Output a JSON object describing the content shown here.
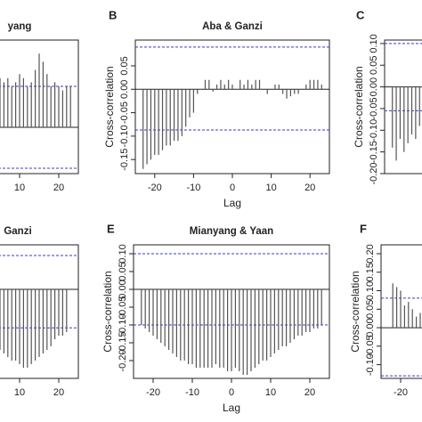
{
  "chart_data": [
    {
      "type": "bar",
      "title": "yang",
      "color": "#555555",
      "conf_color": "#3a3acc",
      "x": [
        5,
        6,
        7,
        8,
        9,
        10,
        11,
        12,
        13,
        14,
        15,
        16,
        17,
        18,
        19,
        20,
        21,
        22,
        23
      ],
      "values": [
        0.12,
        0.11,
        0.12,
        0.1,
        0.11,
        0.13,
        0.12,
        0.1,
        0.11,
        0.14,
        0.18,
        0.16,
        0.13,
        0.1,
        0.11,
        0.1,
        0.09,
        0.1,
        0.1
      ],
      "xlim": [
        -25,
        25
      ],
      "ylim": [
        -0.113,
        0.213
      ],
      "xticks": [
        10,
        20
      ],
      "conf_lines": [
        0.1,
        -0.1
      ]
    },
    {
      "type": "bar",
      "label": "B",
      "title": "Aba & Ganzi",
      "xlabel": "Lag",
      "ylabel": "Cross-correlation",
      "color": "#555555",
      "conf_color": "#3a3acc",
      "x": [
        -23,
        -22,
        -21,
        -20,
        -19,
        -18,
        -17,
        -16,
        -15,
        -14,
        -13,
        -12,
        -11,
        -10,
        -9,
        -8,
        -7,
        -6,
        -5,
        -4,
        -3,
        -2,
        -1,
        0,
        1,
        2,
        3,
        4,
        5,
        6,
        7,
        8,
        9,
        10,
        11,
        12,
        13,
        14,
        15,
        16,
        17,
        18,
        19,
        20,
        21,
        22,
        23
      ],
      "values": [
        -0.17,
        -0.16,
        -0.15,
        -0.14,
        -0.14,
        -0.13,
        -0.12,
        -0.12,
        -0.11,
        -0.11,
        -0.1,
        -0.08,
        -0.06,
        -0.05,
        -0.01,
        0.0,
        0.02,
        0.02,
        -0.005,
        0.01,
        0.02,
        0.01,
        0.02,
        0.01,
        0.0,
        0.02,
        0.01,
        0.02,
        0.01,
        0.02,
        0.02,
        0.0,
        -0.01,
        0.0,
        0.01,
        0.01,
        -0.01,
        -0.02,
        -0.015,
        -0.01,
        -0.01,
        0.0,
        0.01,
        0.02,
        0.02,
        0.02,
        0.01
      ],
      "xlim": [
        -25,
        25
      ],
      "ylim": [
        -0.18,
        0.105
      ],
      "xticks": [
        -20,
        -10,
        0,
        10,
        20
      ],
      "yticks": [
        {
          "value": 0.05,
          "label": "0.05"
        },
        {
          "value": 0,
          "label": "0.00"
        },
        {
          "value": -0.05,
          "label": "-0.05"
        },
        {
          "value": -0.1,
          "label": "-0.10"
        },
        {
          "value": -0.15,
          "label": "-0.15"
        }
      ],
      "conf_lines": [
        0.09,
        -0.087
      ]
    },
    {
      "type": "bar",
      "label": "C",
      "ylabel": "Cross-correlation",
      "color": "#555555",
      "conf_color": "#3a3acc",
      "x": [
        -23,
        -22,
        -21,
        -20,
        -19,
        -18,
        -17,
        -16
      ],
      "values": [
        -0.14,
        -0.17,
        -0.12,
        -0.15,
        -0.13,
        -0.11,
        -0.12,
        -0.09
      ],
      "xlim": [
        -25,
        25
      ],
      "ylim": [
        -0.2,
        0.108
      ],
      "yticks": [
        {
          "value": 0.1,
          "label": "0.10"
        },
        {
          "value": 0.05,
          "label": "0.05"
        },
        {
          "value": 0,
          "label": "0.00"
        },
        {
          "value": -0.05,
          "label": "-0.05"
        },
        {
          "value": -0.1,
          "label": "-0.10"
        },
        {
          "value": -0.15,
          "label": "-0.15"
        },
        {
          "value": -0.2,
          "label": "-0.20"
        }
      ],
      "conf_lines": [
        0.1,
        -0.055
      ]
    },
    {
      "type": "bar",
      "title": "Ganzi",
      "color": "#555555",
      "conf_color": "#3a3acc",
      "x": [
        5,
        6,
        7,
        8,
        9,
        10,
        11,
        12,
        13,
        14,
        15,
        16,
        17,
        18,
        19,
        20,
        21,
        22
      ],
      "values": [
        -0.17,
        -0.18,
        -0.19,
        -0.2,
        -0.2,
        -0.21,
        -0.22,
        -0.22,
        -0.21,
        -0.2,
        -0.19,
        -0.18,
        -0.17,
        -0.16,
        -0.14,
        -0.13,
        -0.13,
        -0.12
      ],
      "xlim": [
        -25,
        25
      ],
      "ylim": [
        -0.25,
        0.125
      ],
      "xticks": [
        10,
        20
      ],
      "conf_lines": [
        0.095,
        -0.108
      ]
    },
    {
      "type": "bar",
      "label": "E",
      "title": "Mianyang & Yaan",
      "xlabel": "Lag",
      "ylabel": "Cross-correlation",
      "color": "#555555",
      "conf_color": "#3a3acc",
      "x": [
        -23,
        -22,
        -21,
        -20,
        -19,
        -18,
        -17,
        -16,
        -15,
        -14,
        -13,
        -12,
        -11,
        -10,
        -9,
        -8,
        -7,
        -6,
        -5,
        -4,
        -3,
        -2,
        -1,
        0,
        1,
        2,
        3,
        4,
        5,
        6,
        7,
        8,
        9,
        10,
        11,
        12,
        13,
        14,
        15,
        16,
        17,
        18,
        19,
        20,
        21,
        22,
        23
      ],
      "values": [
        -0.1,
        -0.11,
        -0.12,
        -0.13,
        -0.14,
        -0.15,
        -0.16,
        -0.17,
        -0.18,
        -0.19,
        -0.2,
        -0.2,
        -0.21,
        -0.21,
        -0.22,
        -0.22,
        -0.22,
        -0.22,
        -0.22,
        -0.21,
        -0.22,
        -0.22,
        -0.23,
        -0.23,
        -0.22,
        -0.23,
        -0.24,
        -0.24,
        -0.23,
        -0.22,
        -0.21,
        -0.2,
        -0.2,
        -0.19,
        -0.18,
        -0.17,
        -0.16,
        -0.16,
        -0.15,
        -0.14,
        -0.13,
        -0.13,
        -0.12,
        -0.12,
        -0.11,
        -0.11,
        -0.1
      ],
      "xlim": [
        -25,
        25
      ],
      "ylim": [
        -0.25,
        0.125
      ],
      "xticks": [
        -20,
        -10,
        0,
        10,
        20
      ],
      "yticks": [
        {
          "value": 0.1,
          "label": "0.10"
        },
        {
          "value": 0.05,
          "label": "0.05"
        },
        {
          "value": 0,
          "label": "0.00"
        },
        {
          "value": -0.05,
          "label": "-0.05"
        },
        {
          "value": -0.1,
          "label": "-0.10"
        },
        {
          "value": -0.15,
          "label": "-0.15"
        },
        {
          "value": -0.2,
          "label": "-0.20"
        }
      ],
      "conf_lines": [
        0.1,
        -0.1
      ]
    },
    {
      "type": "bar",
      "label": "F",
      "ylabel": "Cross-correlation",
      "color": "#555555",
      "conf_color": "#3a3acc",
      "x": [
        -22,
        -21,
        -20,
        -19,
        -18,
        -17,
        -16,
        -15
      ],
      "values": [
        0.12,
        0.11,
        0.1,
        0.06,
        0.07,
        0.05,
        0.03,
        0.04
      ],
      "xlim": [
        -25,
        25
      ],
      "ylim": [
        -0.137,
        0.224
      ],
      "xticks": [
        -20
      ],
      "yticks": [
        {
          "value": 0.2,
          "label": "0.20"
        },
        {
          "value": 0.15,
          "label": "0.15"
        },
        {
          "value": 0.1,
          "label": "0.10"
        },
        {
          "value": 0.05,
          "label": "0.05"
        },
        {
          "value": 0,
          "label": "0.00"
        },
        {
          "value": -0.05,
          "label": "-0.05"
        },
        {
          "value": -0.1,
          "label": "-0.10"
        }
      ],
      "conf_lines": [
        0.08,
        -0.13
      ]
    }
  ]
}
